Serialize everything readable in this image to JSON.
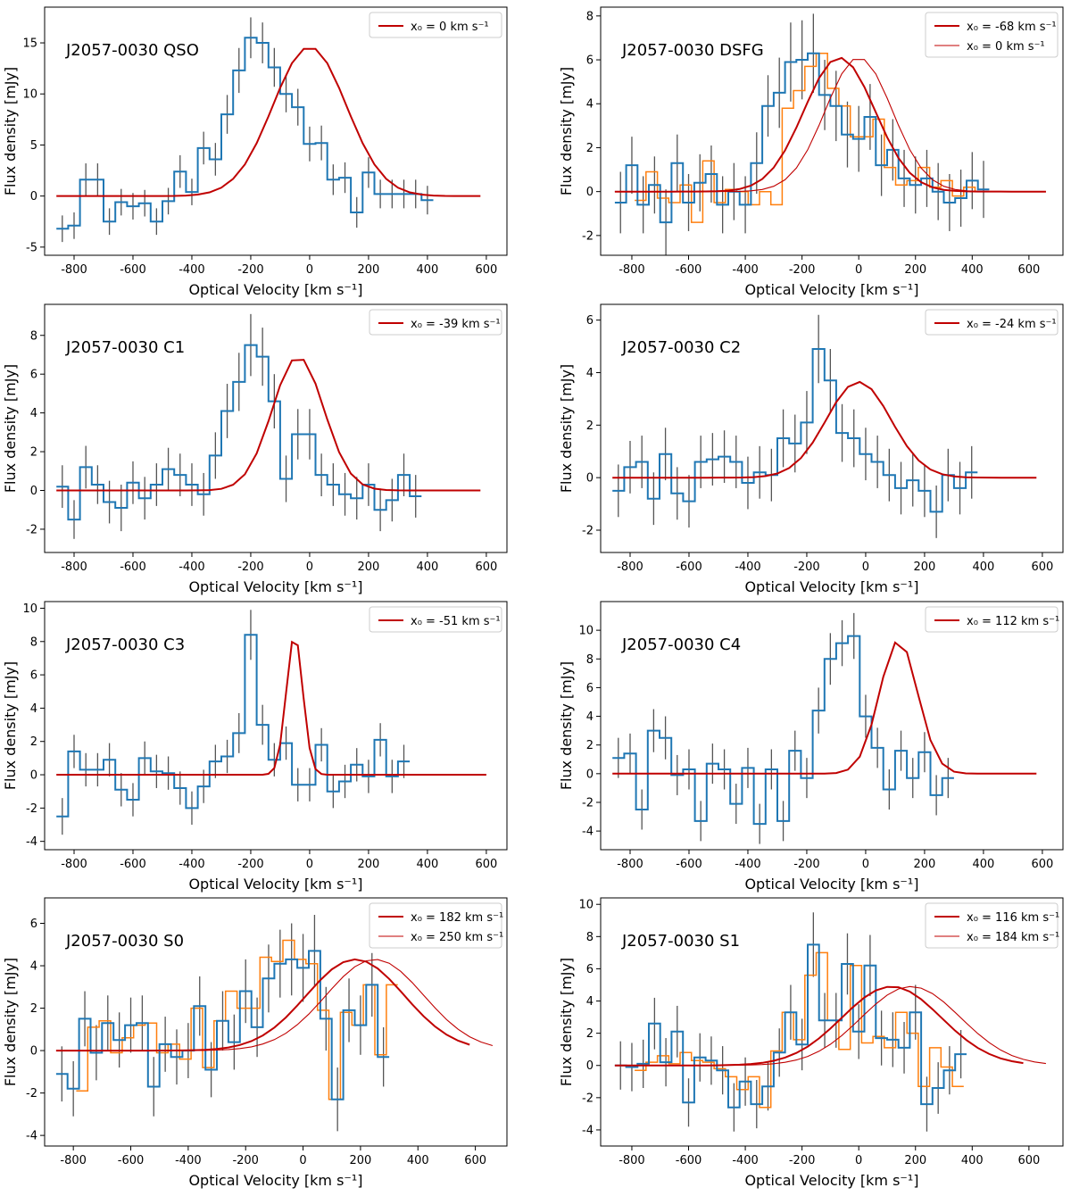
{
  "figure": {
    "x_unit_label": "Optical Velocity [km s⁻¹]",
    "y_unit_label": "Flux density [mJy]"
  },
  "colors": {
    "steps_primary": "#1f77b4",
    "steps_secondary": "#ff7f0e",
    "fit": "#c00000",
    "errorbar": "#555555"
  },
  "chart_data": [
    {
      "type": "line",
      "title": "J2057-0030 QSO",
      "xlabel": "Optical Velocity [km s⁻¹]",
      "ylabel": "Flux density [mJy]",
      "xlim": [
        -900,
        670
      ],
      "ylim": [
        -5.8,
        18.5
      ],
      "xticks": [
        -800,
        -600,
        -400,
        -200,
        0,
        200,
        400,
        600
      ],
      "yticks": [
        -5,
        0,
        5,
        10,
        15
      ],
      "legend": "top-right",
      "series": [
        {
          "name": "spectrum",
          "x_start": -860,
          "x_step": 40,
          "values": [
            -3.2,
            -2.9,
            1.6,
            1.6,
            -2.5,
            -0.6,
            -1.0,
            -0.7,
            -2.5,
            -0.5,
            2.4,
            0.4,
            4.7,
            3.6,
            8.0,
            12.3,
            15.5,
            15.0,
            12.6,
            10.0,
            8.7,
            5.1,
            5.2,
            1.6,
            1.8,
            -1.6,
            2.3,
            0.2,
            0.2,
            0.2,
            0.2,
            -0.4
          ],
          "errors": [
            1.3,
            1.3,
            1.6,
            1.6,
            1.3,
            1.3,
            1.3,
            1.3,
            1.3,
            1.3,
            1.6,
            1.3,
            1.6,
            1.6,
            1.9,
            2.2,
            2.0,
            2.0,
            1.9,
            1.8,
            1.8,
            1.7,
            1.7,
            1.5,
            1.5,
            1.5,
            1.5,
            1.4,
            1.4,
            1.4,
            1.4,
            1.4
          ]
        }
      ],
      "fits": [
        {
          "label": "x₀ = 0 km s⁻¹",
          "x0": 0,
          "amplitude": 14.6,
          "sigma": 125,
          "x_min": -860,
          "x_max": 600,
          "style": "thick"
        }
      ]
    },
    {
      "type": "line",
      "title": "J2057-0030 DSFG",
      "xlabel": "Optical Velocity [km s⁻¹]",
      "ylabel": "Flux density [mJy]",
      "xlim": [
        -910,
        720
      ],
      "ylim": [
        -2.9,
        8.4
      ],
      "xticks": [
        -800,
        -600,
        -400,
        -200,
        0,
        200,
        400,
        600
      ],
      "yticks": [
        -2,
        0,
        2,
        4,
        6,
        8
      ],
      "legend": "top-right",
      "series": [
        {
          "name": "spectrum",
          "x_start": -860,
          "x_step": 40,
          "values": [
            -0.5,
            1.2,
            -0.6,
            0.3,
            -1.4,
            1.3,
            -0.5,
            0.4,
            0.8,
            -0.6,
            0.0,
            -0.6,
            1.3,
            3.9,
            4.5,
            5.9,
            6.0,
            6.3,
            4.4,
            3.9,
            2.6,
            2.4,
            3.4,
            1.2,
            1.9,
            0.6,
            0.3,
            0.6,
            0.0,
            -0.5,
            -0.3,
            0.5,
            0.1
          ],
          "errors": [
            1.4,
            1.3,
            1.3,
            1.3,
            1.5,
            1.3,
            1.3,
            1.3,
            1.3,
            1.3,
            1.3,
            1.3,
            1.4,
            1.4,
            1.6,
            1.8,
            1.8,
            1.8,
            1.6,
            1.6,
            1.5,
            1.5,
            1.5,
            1.4,
            1.4,
            1.3,
            1.3,
            1.3,
            1.3,
            1.3,
            1.3,
            1.3,
            1.3
          ]
        },
        {
          "name": "spectrum-2",
          "x_start": -790,
          "x_step": 40,
          "values": [
            -0.4,
            0.9,
            -0.3,
            -0.5,
            0.3,
            -1.4,
            1.4,
            -0.5,
            0.1,
            0.0,
            -0.6,
            0.0,
            -0.6,
            3.8,
            4.6,
            5.7,
            6.3,
            4.7,
            3.9,
            2.5,
            2.5,
            3.3,
            1.1,
            0.3,
            0.5,
            1.1,
            0.2,
            0.5,
            -0.2,
            0.2,
            0.0
          ]
        }
      ],
      "fits": [
        {
          "label": "x₀ = -68 km s⁻¹",
          "x0": -68,
          "amplitude": 6.1,
          "sigma": 125,
          "x_min": -860,
          "x_max": 670,
          "style": "thick"
        },
        {
          "label": "x₀ = 0 km s⁻¹",
          "x0": 0,
          "amplitude": 6.1,
          "sigma": 118,
          "x_min": -860,
          "x_max": 670,
          "style": "thin"
        }
      ]
    },
    {
      "type": "line",
      "title": "J2057-0030 C1",
      "xlabel": "Optical Velocity [km s⁻¹]",
      "ylabel": "Flux density [mJy]",
      "xlim": [
        -900,
        670
      ],
      "ylim": [
        -3.2,
        9.6
      ],
      "xticks": [
        -800,
        -600,
        -400,
        -200,
        0,
        200,
        400,
        600
      ],
      "yticks": [
        -2,
        0,
        2,
        4,
        6,
        8
      ],
      "legend": "top-right",
      "series": [
        {
          "name": "spectrum",
          "x_start": -860,
          "x_step": 40,
          "values": [
            0.2,
            -1.5,
            1.2,
            0.3,
            -0.6,
            -0.9,
            0.4,
            -0.4,
            0.3,
            1.1,
            0.8,
            0.3,
            -0.2,
            1.8,
            4.1,
            5.6,
            7.5,
            6.9,
            4.6,
            0.6,
            2.9,
            2.9,
            0.8,
            0.3,
            -0.2,
            -0.4,
            0.3,
            -1.0,
            -0.5,
            0.8,
            -0.3
          ],
          "errors": [
            1.1,
            1.0,
            1.1,
            1.0,
            1.1,
            1.2,
            1.1,
            1.1,
            1.1,
            1.1,
            1.1,
            1.1,
            1.1,
            1.2,
            1.4,
            1.5,
            1.6,
            1.5,
            1.4,
            1.2,
            1.3,
            1.3,
            1.1,
            1.1,
            1.1,
            1.1,
            1.1,
            1.1,
            1.1,
            1.1,
            1.1
          ]
        }
      ],
      "fits": [
        {
          "label": "x₀ = -39 km s⁻¹",
          "x0": -39,
          "amplitude": 6.9,
          "sigma": 88,
          "x_min": -860,
          "x_max": 600,
          "style": "thick"
        }
      ]
    },
    {
      "type": "line",
      "title": "J2057-0030 C2",
      "xlabel": "Optical Velocity [km s⁻¹]",
      "ylabel": "Flux density [mJy]",
      "xlim": [
        -900,
        670
      ],
      "ylim": [
        -2.85,
        6.6
      ],
      "xticks": [
        -800,
        -600,
        -400,
        -200,
        0,
        200,
        400,
        600
      ],
      "yticks": [
        -2,
        0,
        2,
        4,
        6
      ],
      "legend": "top-right",
      "series": [
        {
          "name": "spectrum",
          "x_start": -860,
          "x_step": 40,
          "values": [
            -0.5,
            0.4,
            0.6,
            -0.8,
            0.9,
            -0.6,
            -0.9,
            0.6,
            0.7,
            0.8,
            0.6,
            -0.2,
            0.2,
            0.1,
            1.5,
            1.3,
            2.1,
            4.9,
            3.7,
            1.7,
            1.5,
            0.9,
            0.6,
            0.1,
            -0.4,
            -0.1,
            -0.5,
            -1.3,
            0.1,
            -0.4,
            0.2
          ],
          "errors": [
            1.0,
            1.0,
            1.0,
            1.0,
            1.0,
            1.0,
            1.0,
            1.0,
            1.0,
            1.0,
            1.0,
            1.0,
            1.0,
            1.0,
            1.1,
            1.1,
            1.2,
            1.3,
            1.2,
            1.1,
            1.1,
            1.0,
            1.0,
            1.0,
            1.0,
            1.0,
            1.0,
            1.0,
            1.0,
            1.0,
            1.0
          ]
        }
      ],
      "fits": [
        {
          "label": "x₀ = -24 km s⁻¹",
          "x0": -24,
          "amplitude": 3.65,
          "sigma": 110,
          "x_min": -860,
          "x_max": 600,
          "style": "thick"
        }
      ]
    },
    {
      "type": "line",
      "title": "J2057-0030 C3",
      "xlabel": "Optical Velocity [km s⁻¹]",
      "ylabel": "Flux density [mJy]",
      "xlim": [
        -900,
        670
      ],
      "ylim": [
        -4.5,
        10.4
      ],
      "xticks": [
        -800,
        -600,
        -400,
        -200,
        0,
        200,
        400,
        600
      ],
      "yticks": [
        -4,
        -2,
        0,
        2,
        4,
        6,
        8,
        10
      ],
      "legend": "top-right",
      "series": [
        {
          "name": "spectrum",
          "x_start": -860,
          "x_step": 40,
          "values": [
            -2.5,
            1.4,
            0.3,
            0.3,
            0.9,
            -0.9,
            -1.5,
            1.0,
            0.2,
            0.1,
            -0.8,
            -2.0,
            -0.7,
            0.8,
            1.1,
            2.5,
            8.4,
            3.0,
            0.9,
            1.9,
            -0.6,
            -0.6,
            1.8,
            -1.0,
            -0.4,
            0.6,
            -0.1,
            2.1,
            -0.1,
            0.8
          ],
          "errors": [
            1.1,
            1.0,
            1.0,
            1.0,
            1.0,
            1.0,
            1.0,
            1.0,
            1.0,
            1.0,
            1.0,
            1.0,
            1.0,
            1.0,
            1.0,
            1.2,
            1.5,
            1.2,
            1.0,
            1.0,
            1.0,
            1.0,
            1.0,
            1.0,
            1.0,
            1.0,
            1.0,
            1.0,
            1.0,
            1.0
          ]
        }
      ],
      "fits": [
        {
          "label": "x₀ = -51 km s⁻¹",
          "x0": -51,
          "amplitude": 8.4,
          "sigma": 28,
          "x_min": -860,
          "x_max": 600,
          "style": "thick"
        }
      ]
    },
    {
      "type": "line",
      "title": "J2057-0030 C4",
      "xlabel": "Optical Velocity [km s⁻¹]",
      "ylabel": "Flux density [mJy]",
      "xlim": [
        -900,
        670
      ],
      "ylim": [
        -5.3,
        12.0
      ],
      "xticks": [
        -800,
        -600,
        -400,
        -200,
        0,
        200,
        400,
        600
      ],
      "yticks": [
        -4,
        -2,
        0,
        2,
        4,
        6,
        8,
        10
      ],
      "legend": "top-right",
      "series": [
        {
          "name": "spectrum",
          "x_start": -860,
          "x_step": 40,
          "values": [
            1.1,
            1.4,
            -2.5,
            3.0,
            2.5,
            -0.1,
            0.3,
            -3.3,
            0.7,
            0.3,
            -2.1,
            0.4,
            -3.5,
            0.3,
            -3.3,
            1.6,
            -0.3,
            4.4,
            8.0,
            9.1,
            9.6,
            4.0,
            1.8,
            -1.1,
            1.6,
            -0.3,
            1.5,
            -1.5,
            -0.3
          ],
          "errors": [
            1.4,
            1.4,
            1.4,
            1.5,
            1.5,
            1.4,
            1.4,
            1.4,
            1.4,
            1.4,
            1.4,
            1.4,
            1.4,
            1.4,
            1.4,
            1.4,
            1.4,
            1.6,
            1.8,
            1.6,
            1.6,
            1.5,
            1.4,
            1.4,
            1.4,
            1.4,
            1.4,
            1.4,
            1.4
          ]
        }
      ],
      "fits": [
        {
          "label": "x₀ = 112 km s⁻¹",
          "x0": 112,
          "amplitude": 9.3,
          "sigma": 65,
          "x_min": -860,
          "x_max": 600,
          "style": "thick"
        }
      ]
    },
    {
      "type": "line",
      "title": "J2057-0030 S0",
      "xlabel": "Optical Velocity [km s⁻¹]",
      "ylabel": "Flux density [mJy]",
      "xlim": [
        -900,
        710
      ],
      "ylim": [
        -4.5,
        7.2
      ],
      "xticks": [
        -800,
        -600,
        -400,
        -200,
        0,
        200,
        400,
        600
      ],
      "yticks": [
        -4,
        -2,
        0,
        2,
        4,
        6
      ],
      "legend": "top-right",
      "series": [
        {
          "name": "spectrum",
          "x_start": -860,
          "x_step": 40,
          "values": [
            -1.1,
            -1.8,
            1.5,
            -0.1,
            1.3,
            0.5,
            1.2,
            1.3,
            -1.7,
            0.3,
            -0.3,
            0.0,
            2.1,
            -0.9,
            1.4,
            0.4,
            2.8,
            1.1,
            3.4,
            4.1,
            4.3,
            3.9,
            4.7,
            1.5,
            -2.3,
            1.9,
            1.2,
            3.1,
            -0.3
          ],
          "errors": [
            1.3,
            1.3,
            1.3,
            1.3,
            1.3,
            1.3,
            1.3,
            1.3,
            1.4,
            1.3,
            1.3,
            1.3,
            1.4,
            1.3,
            1.4,
            1.3,
            1.5,
            1.4,
            1.6,
            1.6,
            1.7,
            1.6,
            1.7,
            1.5,
            1.5,
            1.5,
            1.4,
            1.5,
            1.4
          ]
        },
        {
          "name": "spectrum-2",
          "x_start": -790,
          "x_step": 40,
          "values": [
            -1.9,
            1.1,
            1.4,
            -0.1,
            0.6,
            1.2,
            1.3,
            -0.1,
            0.3,
            -0.4,
            2.0,
            -0.8,
            1.4,
            2.8,
            2.0,
            2.0,
            4.4,
            4.2,
            5.2,
            4.3,
            4.1,
            1.9,
            -2.3,
            1.8,
            1.2,
            3.1,
            -0.2,
            3.1
          ]
        }
      ],
      "fits": [
        {
          "label": "x₀ = 182 km s⁻¹",
          "x0": 182,
          "amplitude": 4.3,
          "sigma": 170,
          "x_min": -860,
          "x_max": 600,
          "style": "thick"
        },
        {
          "label": "x₀ = 250 km s⁻¹",
          "x0": 250,
          "amplitude": 4.3,
          "sigma": 170,
          "x_min": -860,
          "x_max": 670,
          "style": "thin"
        }
      ]
    },
    {
      "type": "line",
      "title": "J2057-0030 S1",
      "xlabel": "Optical Velocity [km s⁻¹]",
      "ylabel": "Flux density [mJy]",
      "xlim": [
        -910,
        720
      ],
      "ylim": [
        -5.0,
        10.4
      ],
      "xticks": [
        -800,
        -600,
        -400,
        -200,
        0,
        200,
        400,
        600
      ],
      "yticks": [
        -4,
        -2,
        0,
        2,
        4,
        6,
        8,
        10
      ],
      "legend": "top-right",
      "series": [
        {
          "name": "spectrum",
          "x_start": -860,
          "x_step": 40,
          "values": [
            0.0,
            -0.1,
            0.1,
            2.6,
            0.2,
            2.1,
            -2.3,
            0.5,
            0.3,
            -0.3,
            -2.6,
            -1.0,
            -2.4,
            -1.3,
            0.8,
            3.3,
            1.3,
            7.5,
            2.8,
            2.8,
            6.3,
            2.1,
            6.2,
            1.7,
            1.6,
            1.1,
            3.3,
            -2.4,
            -1.4,
            -0.3,
            0.7
          ],
          "errors": [
            1.5,
            1.5,
            1.5,
            1.6,
            1.5,
            1.6,
            1.5,
            1.5,
            1.5,
            1.5,
            1.5,
            1.5,
            1.5,
            1.5,
            1.5,
            1.7,
            1.6,
            2.0,
            1.7,
            1.7,
            1.9,
            1.7,
            1.9,
            1.7,
            1.7,
            1.6,
            1.7,
            1.7,
            1.6,
            1.5,
            1.5
          ]
        },
        {
          "name": "spectrum-2",
          "x_start": -790,
          "x_step": 40,
          "values": [
            -0.3,
            0.2,
            0.6,
            0.1,
            0.8,
            0.3,
            0.2,
            -0.2,
            -0.7,
            -1.5,
            -0.7,
            -2.6,
            0.9,
            3.3,
            1.6,
            5.6,
            7.0,
            2.8,
            1.0,
            6.2,
            1.4,
            1.8,
            1.1,
            3.3,
            2.0,
            -1.3,
            1.1,
            -0.1,
            -1.3
          ]
        }
      ],
      "fits": [
        {
          "label": "x₀ = 116 km s⁻¹",
          "x0": 116,
          "amplitude": 4.9,
          "sigma": 175,
          "x_min": -860,
          "x_max": 600,
          "style": "thick"
        },
        {
          "label": "x₀ = 184 km s⁻¹",
          "x0": 184,
          "amplitude": 4.9,
          "sigma": 175,
          "x_min": -860,
          "x_max": 670,
          "style": "thin"
        }
      ]
    }
  ]
}
